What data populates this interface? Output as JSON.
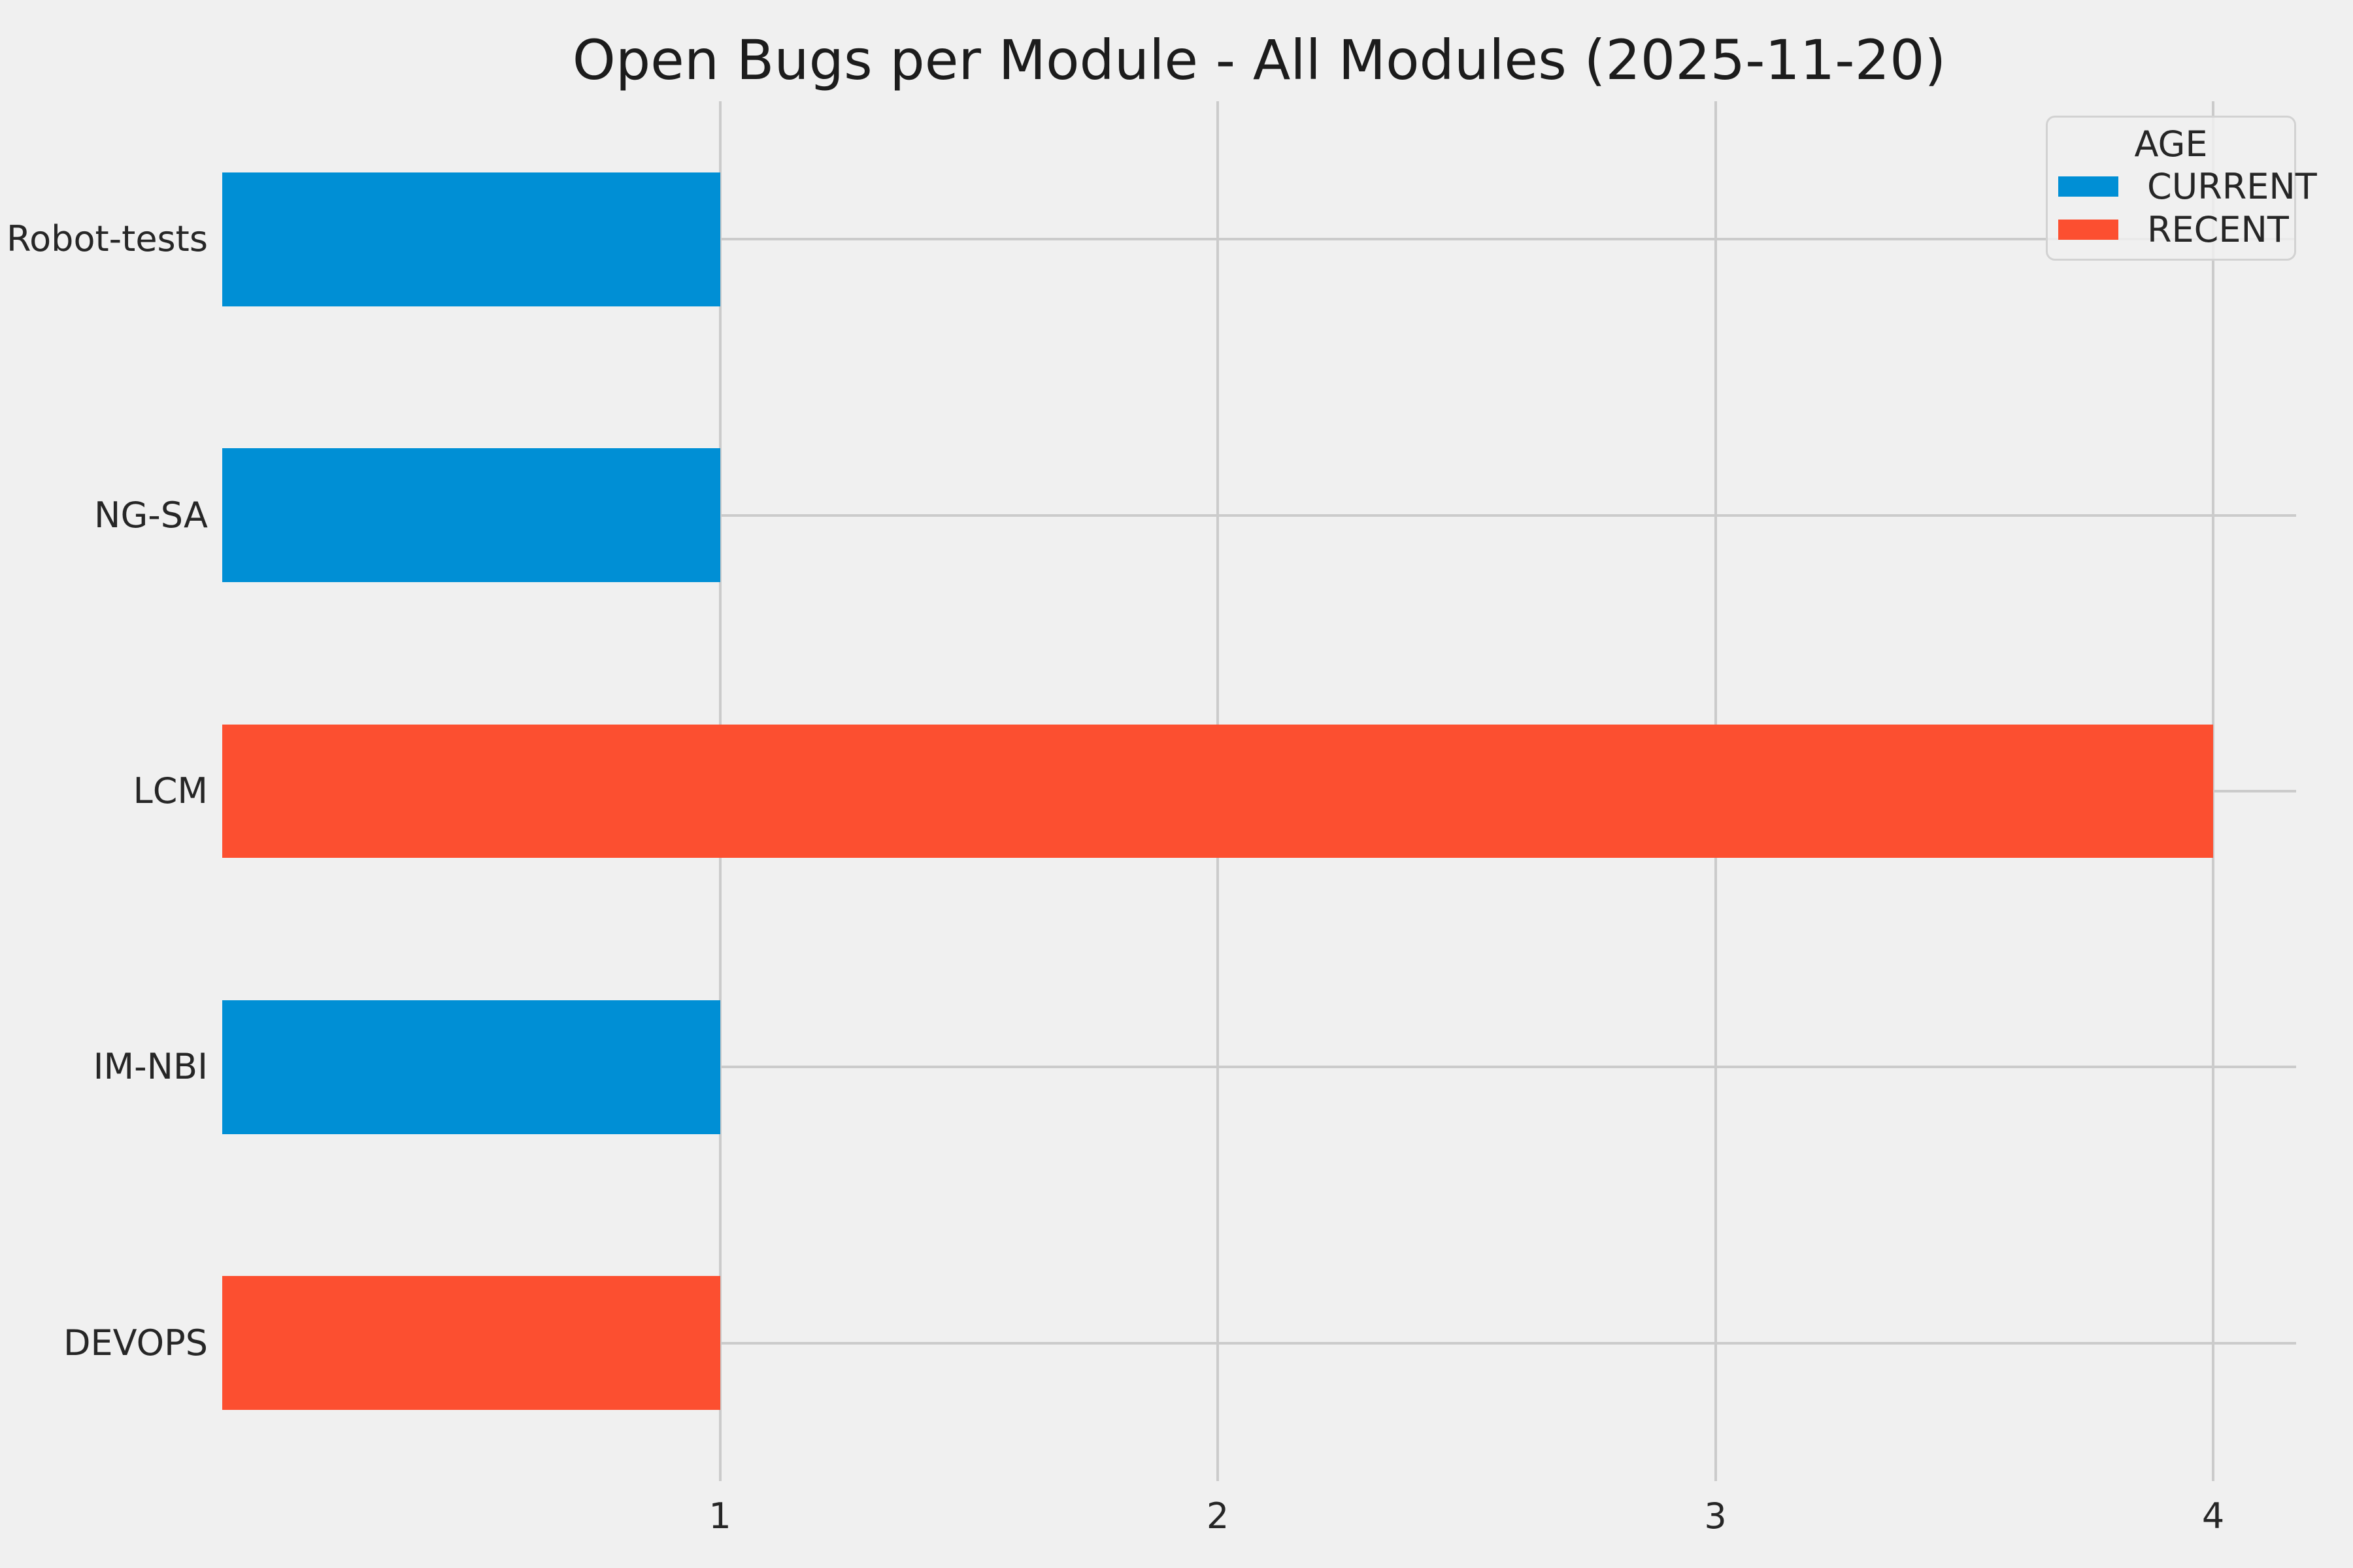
{
  "chart_data": {
    "type": "bar",
    "orientation": "horizontal",
    "title": "Open Bugs per Module - All Modules (2025-11-20)",
    "categories": [
      "Robot-tests",
      "NG-SA",
      "LCM",
      "IM-NBI",
      "DEVOPS"
    ],
    "values": [
      1,
      1,
      4,
      1,
      1
    ],
    "bar_series": [
      "CURRENT",
      "CURRENT",
      "RECENT",
      "CURRENT",
      "RECENT"
    ],
    "series": [
      {
        "name": "CURRENT",
        "color": "#008fd5"
      },
      {
        "name": "RECENT",
        "color": "#fc4f30"
      }
    ],
    "legend": {
      "title": "AGE",
      "position": "upper-right"
    },
    "xlabel": "",
    "ylabel": "",
    "xticks": [
      1,
      2,
      3,
      4
    ],
    "xlim": [
      0,
      4.1667
    ],
    "grid": true,
    "bar_height_fraction": 0.485,
    "colors": {
      "background": "#f0f0f0",
      "grid": "#cbcbcb",
      "text": "#262626"
    }
  }
}
